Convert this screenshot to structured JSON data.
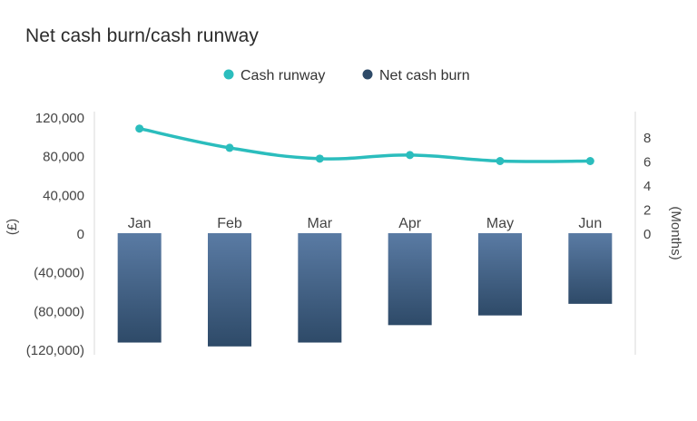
{
  "chart_data": {
    "type": "bar+line",
    "title": "Net cash burn/cash runway",
    "categories": [
      "Jan",
      "Feb",
      "Mar",
      "Apr",
      "May",
      "Jun"
    ],
    "series": [
      {
        "name": "Net cash burn",
        "type": "bar",
        "axis": "left",
        "color": "#2e4a68",
        "color_top": "#5a7ba4",
        "values": [
          -113000,
          -117000,
          -113000,
          -95000,
          -85000,
          -73000
        ]
      },
      {
        "name": "Cash runway",
        "type": "line",
        "axis": "right",
        "color": "#2bbdbd",
        "values": [
          8.7,
          7.1,
          6.2,
          6.5,
          6.0,
          6.0
        ]
      }
    ],
    "left_axis": {
      "label": "(£)",
      "range": [
        -120000,
        120000
      ],
      "ticks": [
        120000,
        80000,
        40000,
        0,
        -40000,
        -80000,
        -120000
      ],
      "tick_labels": [
        "120,000",
        "80,000",
        "40,000",
        "0",
        "(40,000)",
        "(80,000)",
        "(120,000)"
      ]
    },
    "right_axis": {
      "label": "(Months)",
      "range": [
        0,
        9
      ],
      "ticks": [
        0,
        2,
        4,
        6,
        8
      ],
      "tick_labels": [
        "0",
        "2",
        "4",
        "6",
        "8"
      ]
    },
    "legend": {
      "position": "top-center",
      "items": [
        {
          "label": "Cash runway",
          "color": "#2bbdbd"
        },
        {
          "label": "Net cash burn",
          "color": "#2e4a68"
        }
      ]
    },
    "grid": false
  }
}
